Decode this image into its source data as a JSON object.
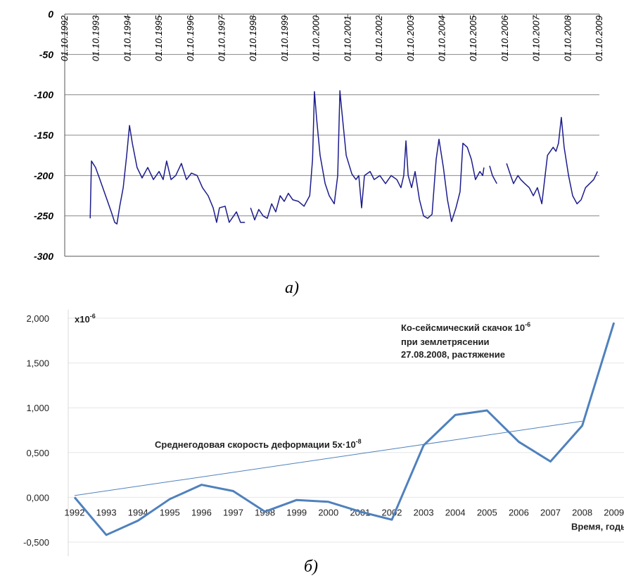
{
  "chart_data": [
    {
      "type": "line",
      "caption": "а)",
      "x": [
        1993.56,
        1993.6,
        1993.73,
        1993.87,
        1994.05,
        1994.23,
        1994.34,
        1994.41,
        1994.5,
        1994.61,
        1994.72,
        1994.81,
        1994.9,
        1995.05,
        1995.21,
        1995.39,
        1995.57,
        1995.75,
        1995.88,
        1995.99,
        1996.13,
        1996.28,
        1996.46,
        1996.62,
        1996.78,
        1996.96,
        1997.13,
        1997.31,
        1997.47,
        1997.58,
        1997.67,
        1997.85,
        1997.98,
        1998.21,
        1998.34,
        1998.48,
        1998.57,
        1998.66,
        1998.79,
        1998.92,
        1999.06,
        1999.19,
        1999.33,
        1999.46,
        1999.6,
        1999.73,
        1999.86,
        2000.0,
        2000.18,
        2000.36,
        2000.54,
        2000.63,
        2000.69,
        2000.76,
        2000.87,
        2001.03,
        2001.16,
        2001.32,
        2001.43,
        2001.5,
        2001.56,
        2001.7,
        2001.88,
        2002.01,
        2002.1,
        2002.19,
        2002.28,
        2002.46,
        2002.59,
        2002.77,
        2002.95,
        2003.13,
        2003.31,
        2003.44,
        2003.53,
        2003.6,
        2003.67,
        2003.78,
        2003.89,
        2004.03,
        2004.16,
        2004.29,
        2004.43,
        2004.56,
        2004.65,
        2004.79,
        2004.92,
        2005.05,
        2005.19,
        2005.32,
        2005.41,
        2005.55,
        2005.68,
        2005.81,
        2005.95,
        2006.04,
        2006.08,
        2006.17,
        2006.26,
        2006.35,
        2006.49,
        2006.62,
        2006.8,
        2006.93,
        2007.02,
        2007.16,
        2007.25,
        2007.38,
        2007.52,
        2007.65,
        2007.78,
        2007.92,
        2008.1,
        2008.28,
        2008.37,
        2008.45,
        2008.54,
        2008.63,
        2008.77,
        2008.9,
        2009.04,
        2009.17,
        2009.31,
        2009.44,
        2009.57,
        2009.69
      ],
      "series": [
        {
          "color": "#1c1c8c",
          "values": [
            -253,
            -182,
            -190,
            -205,
            -225,
            -245,
            -258,
            -260,
            -238,
            -215,
            -175,
            -138,
            -160,
            -190,
            -203,
            -190,
            -205,
            -195,
            -205,
            -182,
            -205,
            -200,
            -185,
            -205,
            -197,
            -200,
            -215,
            -225,
            -240,
            -258,
            -240,
            -238,
            -258,
            -245,
            -258,
            -258,
            null,
            -240,
            -255,
            -242,
            -250,
            -253,
            -235,
            -245,
            -225,
            -232,
            -222,
            -230,
            -232,
            -238,
            -225,
            -180,
            -96,
            -130,
            -175,
            -210,
            -225,
            -235,
            -200,
            -95,
            -120,
            -175,
            -198,
            -205,
            -200,
            -240,
            -200,
            -195,
            -205,
            -200,
            -210,
            -200,
            -205,
            -215,
            -200,
            -157,
            -200,
            -215,
            -195,
            -230,
            -250,
            -253,
            -248,
            -180,
            -155,
            -190,
            -230,
            -257,
            -240,
            -220,
            -160,
            -165,
            -180,
            -205,
            -195,
            -200,
            -190,
            null,
            -188,
            -200,
            -210,
            null,
            -185,
            -200,
            -210,
            -200,
            -205,
            -210,
            -215,
            -225,
            -215,
            -235,
            -175,
            -165,
            -170,
            -160,
            -128,
            -165,
            -200,
            -225,
            -235,
            -230,
            -215,
            -210,
            -205,
            -195
          ]
        }
      ],
      "xlim": [
        1992.75,
        2009.75
      ],
      "xticks": [
        {
          "value": 1992.75,
          "label": "01.10.1992"
        },
        {
          "value": 1993.75,
          "label": "01.10.1993"
        },
        {
          "value": 1994.75,
          "label": "01.10.1994"
        },
        {
          "value": 1995.75,
          "label": "01.10.1995"
        },
        {
          "value": 1996.75,
          "label": "01.10.1996"
        },
        {
          "value": 1997.75,
          "label": "01.10.1997"
        },
        {
          "value": 1998.75,
          "label": "01.10.1998"
        },
        {
          "value": 1999.75,
          "label": "01.10.1999"
        },
        {
          "value": 2000.75,
          "label": "01.10.2000"
        },
        {
          "value": 2001.75,
          "label": "01.10.2001"
        },
        {
          "value": 2002.75,
          "label": "01.10.2002"
        },
        {
          "value": 2003.75,
          "label": "01.10.2003"
        },
        {
          "value": 2004.75,
          "label": "01.10.2004"
        },
        {
          "value": 2005.75,
          "label": "01.10.2005"
        },
        {
          "value": 2006.75,
          "label": "01.10.2006"
        },
        {
          "value": 2007.75,
          "label": "01.10.2007"
        },
        {
          "value": 2008.75,
          "label": "01.10.2008"
        },
        {
          "value": 2009.75,
          "label": "01.10.2009"
        }
      ],
      "ylim": [
        -300,
        0
      ],
      "yticks": [
        0,
        -50,
        -100,
        -150,
        -200,
        -250,
        -300
      ],
      "grid": true
    },
    {
      "type": "line",
      "caption": "б)",
      "categories": [
        "1992",
        "1993",
        "1994",
        "1995",
        "1996",
        "1997",
        "1998",
        "1999",
        "2000",
        "2001",
        "2002",
        "2003",
        "2004",
        "2005",
        "2006",
        "2007",
        "2008",
        "2009"
      ],
      "series": [
        {
          "color": "#4f81bd",
          "values": [
            0.0,
            -0.42,
            -0.26,
            -0.02,
            0.14,
            0.07,
            -0.16,
            -0.03,
            -0.05,
            -0.16,
            -0.25,
            0.58,
            0.92,
            0.97,
            0.62,
            0.4,
            0.8,
            1.95
          ]
        }
      ],
      "trend": {
        "categories": [
          "1992",
          "2008"
        ],
        "values": [
          0.02,
          0.85
        ]
      },
      "ylim": [
        -0.5,
        2.0
      ],
      "yticks": [
        {
          "value": 2.0,
          "label": "2,000"
        },
        {
          "value": 1.5,
          "label": "1,500"
        },
        {
          "value": 1.0,
          "label": "1,000"
        },
        {
          "value": 0.5,
          "label": "0,500"
        },
        {
          "value": 0.0,
          "label": "0,000"
        },
        {
          "value": -0.5,
          "label": "-0,500"
        }
      ],
      "grid": true,
      "x_label": "Время, годы",
      "y_unit": {
        "text": "x10",
        "sup": "-6"
      },
      "annotations": [
        {
          "text": "Ко-сейсмический скачок 10",
          "sup": "-6"
        },
        {
          "text": "при землетрясении"
        },
        {
          "text": "27.08.2008, растяжение"
        },
        {
          "text": "Среднегодовая скорость деформации 5x·10",
          "sup": "-8"
        }
      ]
    }
  ]
}
